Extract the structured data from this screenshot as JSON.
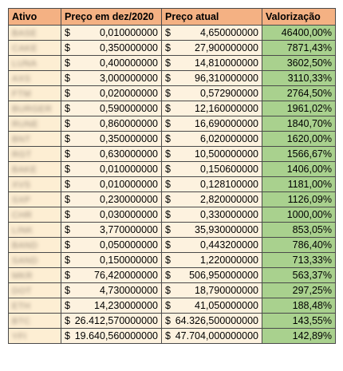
{
  "headers": {
    "asset": "Ativo",
    "price_dec2020": "Preço em dez/2020",
    "price_now": "Preço atual",
    "valorization": "Valorização"
  },
  "currency_symbol": "$",
  "rows": [
    {
      "asset": "BASE",
      "price_dec2020": "0,010000000",
      "price_now": "4,650000000",
      "valorization": "46400,00%"
    },
    {
      "asset": "CAKE",
      "price_dec2020": "0,350000000",
      "price_now": "27,900000000",
      "valorization": "7871,43%"
    },
    {
      "asset": "LUNA",
      "price_dec2020": "0,400000000",
      "price_now": "14,810000000",
      "valorization": "3602,50%"
    },
    {
      "asset": "AXS",
      "price_dec2020": "3,000000000",
      "price_now": "96,310000000",
      "valorization": "3110,33%"
    },
    {
      "asset": "FTM",
      "price_dec2020": "0,020000000",
      "price_now": "0,572900000",
      "valorization": "2764,50%"
    },
    {
      "asset": "BURGER",
      "price_dec2020": "0,590000000",
      "price_now": "12,160000000",
      "valorization": "1961,02%"
    },
    {
      "asset": "RUNE",
      "price_dec2020": "0,860000000",
      "price_now": "16,690000000",
      "valorization": "1840,70%"
    },
    {
      "asset": "BNT",
      "price_dec2020": "0,350000000",
      "price_now": "6,020000000",
      "valorization": "1620,00%"
    },
    {
      "asset": "RGT",
      "price_dec2020": "0,630000000",
      "price_now": "10,500000000",
      "valorization": "1566,67%"
    },
    {
      "asset": "BAKE",
      "price_dec2020": "0,010000000",
      "price_now": "0,150600000",
      "valorization": "1406,00%"
    },
    {
      "asset": "XVS",
      "price_dec2020": "0,010000000",
      "price_now": "0,128100000",
      "valorization": "1181,00%"
    },
    {
      "asset": "SXP",
      "price_dec2020": "0,230000000",
      "price_now": "2,820000000",
      "valorization": "1126,09%"
    },
    {
      "asset": "CHR",
      "price_dec2020": "0,030000000",
      "price_now": "0,330000000",
      "valorization": "1000,00%"
    },
    {
      "asset": "LINK",
      "price_dec2020": "3,770000000",
      "price_now": "35,930000000",
      "valorization": "853,05%"
    },
    {
      "asset": "BAND",
      "price_dec2020": "0,050000000",
      "price_now": "0,443200000",
      "valorization": "786,40%"
    },
    {
      "asset": "SAND",
      "price_dec2020": "0,150000000",
      "price_now": "1,220000000",
      "valorization": "713,33%"
    },
    {
      "asset": "MKR",
      "price_dec2020": "76,420000000",
      "price_now": "506,950000000",
      "valorization": "563,37%"
    },
    {
      "asset": "DOT",
      "price_dec2020": "4,730000000",
      "price_now": "18,790000000",
      "valorization": "297,25%"
    },
    {
      "asset": "ETH",
      "price_dec2020": "14,230000000",
      "price_now": "41,050000000",
      "valorization": "188,48%"
    },
    {
      "asset": "BTC",
      "price_dec2020": "26.412,570000000",
      "price_now": "64.326,500000000",
      "valorization": "143,55%"
    },
    {
      "asset": "YFI",
      "price_dec2020": "19.640,560000000",
      "price_now": "47.704,000000000",
      "valorization": "142,89%"
    }
  ],
  "colors": {
    "header_bg": "#f4b183",
    "cell_bg": "#fdf2df",
    "valorization_bg": "#a9d18e",
    "border": "#4a4a4a"
  }
}
